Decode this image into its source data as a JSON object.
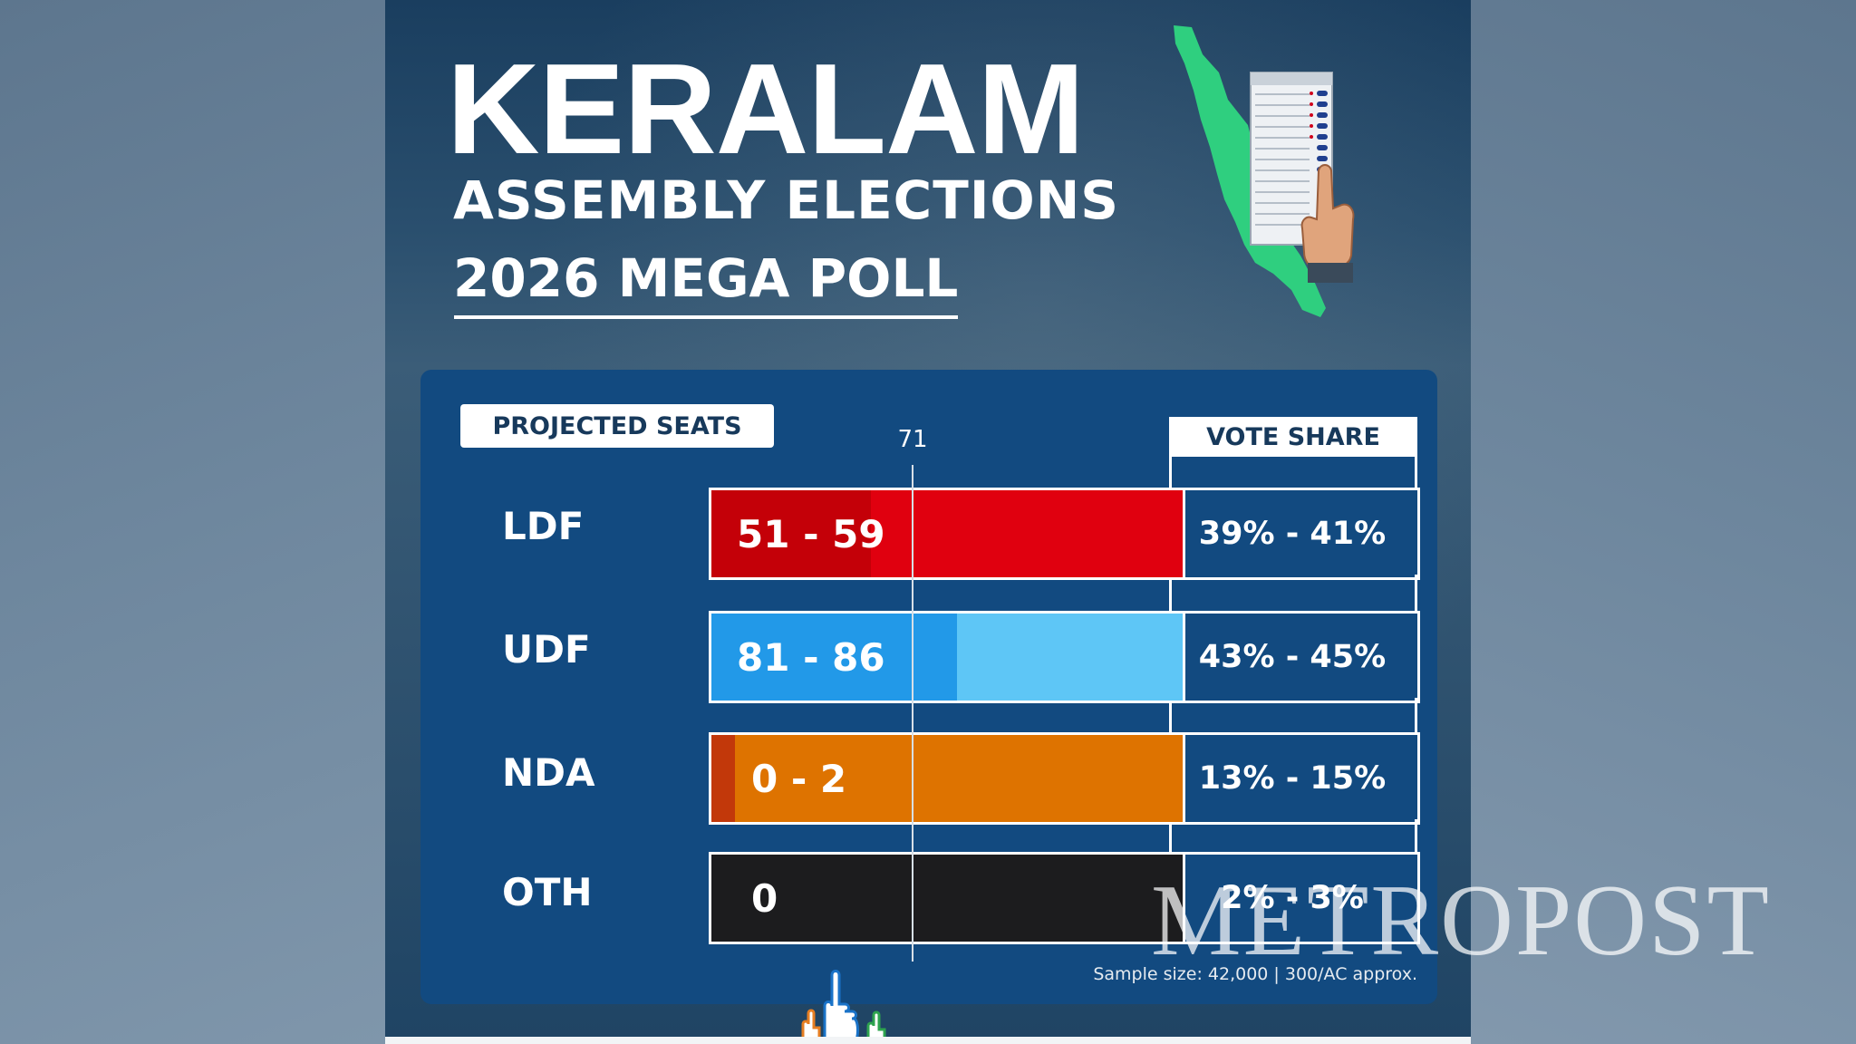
{
  "title": {
    "main": "KERALAM",
    "sub": "ASSEMBLY ELECTIONS",
    "sub2": "2026 MEGA POLL"
  },
  "chart_data": {
    "type": "bar",
    "seats_label": "PROJECTED SEATS",
    "vote_share_label": "VOTE SHARE",
    "reference_line": {
      "value": 71,
      "label": "71"
    },
    "xlim": [
      0,
      140
    ],
    "rows": [
      {
        "name": "LDF",
        "seats_text": "51 - 59",
        "seats_min": 51,
        "seats_max": 59,
        "vote_share": "39% - 41%",
        "color": "#e0000f",
        "min_color": "#c40008"
      },
      {
        "name": "UDF",
        "seats_text": "81 - 86",
        "seats_min": 81,
        "seats_max": 86,
        "vote_share": "43% - 45%",
        "color": "#5ec6f6",
        "min_color": "#2299e8"
      },
      {
        "name": "NDA",
        "seats_text": "0 - 2",
        "seats_min": 0,
        "seats_max": 2,
        "vote_share": "13% - 15%",
        "color": "#de7300",
        "min_color": "#c2380a"
      },
      {
        "name": "OTH",
        "seats_text": "0",
        "seats_min": 0,
        "seats_max": 0,
        "vote_share": "2% - 3%",
        "color": "#1c1c1e",
        "min_color": "#1c1c1e"
      }
    ],
    "footnote": "Sample size: 42,000 | 300/AC approx."
  },
  "watermark": "METROPOST",
  "colors": {
    "panel": "#124a80",
    "map": "#2fcf7f"
  }
}
